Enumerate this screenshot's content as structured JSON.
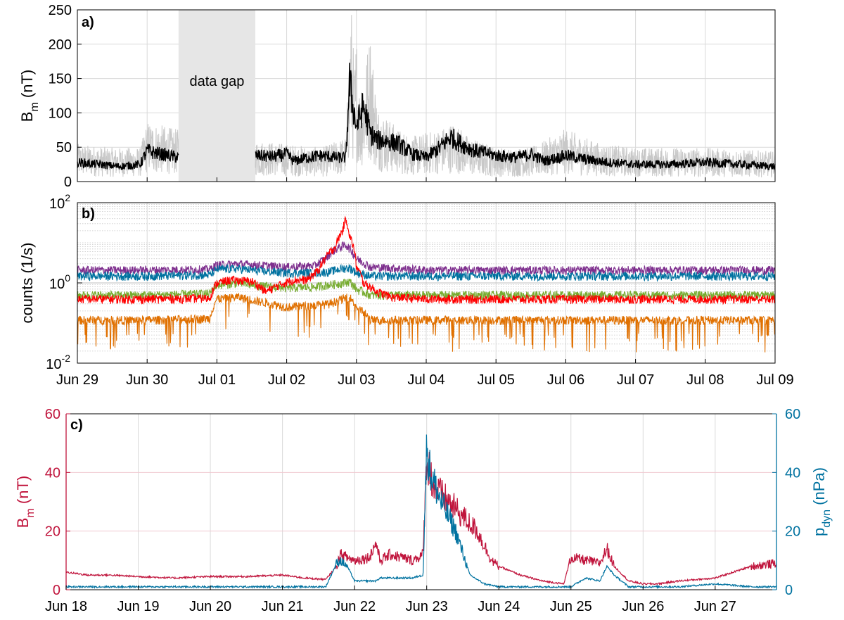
{
  "chart_data": [
    {
      "type": "line",
      "panel_label": "a)",
      "ylabel": "B",
      "ylabel_sub": "m",
      "ylabel_unit": " (nT)",
      "ylim": [
        0,
        250
      ],
      "yticks": [
        0,
        50,
        100,
        150,
        200,
        250
      ],
      "xlim": [
        0,
        10
      ],
      "xticks": [
        0,
        1,
        2,
        3,
        4,
        5,
        6,
        7,
        8,
        9,
        10
      ],
      "grid": true,
      "annotation": "data gap",
      "gap": [
        1.45,
        2.55
      ],
      "colors": {
        "raw": "#c8c8c8",
        "avg": "#000000",
        "gap": "#e6e6e6"
      },
      "series": [
        {
          "role": "raw",
          "x": [
            0,
            0.5,
            0.9,
            1.0,
            1.4,
            2.6,
            3.0,
            3.5,
            3.85,
            3.92,
            3.97,
            4.0,
            4.05,
            4.2,
            4.3,
            4.6,
            4.8,
            5.2,
            5.4,
            5.6,
            6.0,
            6.5,
            7.0,
            7.5,
            8.0,
            9.0,
            10.0
          ],
          "y": [
            50,
            45,
            45,
            80,
            70,
            55,
            50,
            45,
            60,
            250,
            150,
            200,
            120,
            200,
            100,
            70,
            60,
            70,
            80,
            60,
            45,
            45,
            70,
            50,
            45,
            45,
            40
          ]
        },
        {
          "role": "avg",
          "x": [
            0,
            0.3,
            0.6,
            0.9,
            1.0,
            1.1,
            1.3,
            1.45,
            2.55,
            2.8,
            3.0,
            3.1,
            3.3,
            3.5,
            3.7,
            3.85,
            3.9,
            3.95,
            4.0,
            4.05,
            4.1,
            4.2,
            4.3,
            4.4,
            4.6,
            4.8,
            5.0,
            5.2,
            5.35,
            5.5,
            5.7,
            6.0,
            6.3,
            6.5,
            6.7,
            7.0,
            7.3,
            7.6,
            8.0,
            8.5,
            9.0,
            9.5,
            10.0
          ],
          "y": [
            28,
            25,
            22,
            25,
            45,
            42,
            38,
            35,
            38,
            36,
            40,
            30,
            35,
            38,
            35,
            35,
            145,
            110,
            80,
            95,
            110,
            70,
            60,
            60,
            55,
            40,
            35,
            50,
            65,
            55,
            45,
            38,
            35,
            40,
            30,
            38,
            32,
            28,
            25,
            25,
            28,
            25,
            22
          ]
        }
      ]
    },
    {
      "type": "line",
      "panel_label": "b)",
      "ylabel": "counts (1/s)",
      "yscale": "log",
      "ylim": [
        0.01,
        100
      ],
      "yticks_major": [
        0.01,
        1,
        100
      ],
      "ytick_labels": [
        {
          "base": "10",
          "exp": "-2"
        },
        {
          "base": "10",
          "exp": "0"
        },
        {
          "base": "10",
          "exp": "2"
        }
      ],
      "xlim": [
        0,
        10
      ],
      "xtick_labels": [
        "Jun 29",
        "Jun 30",
        "Jul 01",
        "Jul 02",
        "Jul 03",
        "Jul 04",
        "Jul 05",
        "Jul 06",
        "Jul 07",
        "Jul 08",
        "Jul 09"
      ],
      "grid": true,
      "series": [
        {
          "color": "#7e2f8e",
          "x": [
            0,
            1,
            1.9,
            2.0,
            2.3,
            2.6,
            3.0,
            3.4,
            3.55,
            3.7,
            3.85,
            4.0,
            4.2,
            5,
            6,
            7,
            8,
            9,
            10
          ],
          "y": [
            2.1,
            2.1,
            2.2,
            2.8,
            3.0,
            2.8,
            2.5,
            2.7,
            4,
            7,
            9,
            4,
            2.5,
            2.1,
            2.1,
            2.1,
            2.1,
            2.1,
            2.1
          ]
        },
        {
          "color": "#0072a0",
          "x": [
            0,
            1,
            1.9,
            2.0,
            2.3,
            2.6,
            3.0,
            3.4,
            3.6,
            3.8,
            3.9,
            4.0,
            4.2,
            5,
            6,
            7,
            8,
            9,
            10
          ],
          "y": [
            1.5,
            1.5,
            1.6,
            2.2,
            2.3,
            2.0,
            1.8,
            1.8,
            1.9,
            2.3,
            2.4,
            1.8,
            1.5,
            1.5,
            1.5,
            1.5,
            1.5,
            1.5,
            1.5
          ]
        },
        {
          "color": "#77ac30",
          "x": [
            0,
            1,
            1.9,
            2.0,
            2.3,
            2.6,
            3.0,
            3.4,
            3.6,
            3.8,
            3.9,
            4.0,
            4.2,
            5,
            6,
            7,
            8,
            9,
            10
          ],
          "y": [
            0.5,
            0.5,
            0.55,
            0.9,
            1.0,
            0.85,
            0.75,
            0.8,
            0.9,
            1.0,
            1.1,
            0.7,
            0.5,
            0.5,
            0.5,
            0.5,
            0.5,
            0.5,
            0.5
          ]
        },
        {
          "color": "#ff0000",
          "x": [
            0,
            1,
            1.9,
            2.0,
            2.2,
            2.5,
            2.7,
            2.9,
            3.1,
            3.3,
            3.45,
            3.55,
            3.7,
            3.8,
            3.85,
            3.9,
            4.0,
            4.1,
            4.3,
            4.5,
            5,
            6,
            7,
            8,
            9,
            10
          ],
          "y": [
            0.4,
            0.4,
            0.42,
            1.0,
            1.2,
            1.1,
            0.6,
            0.9,
            1.2,
            1.2,
            2.0,
            4,
            8,
            20,
            40,
            15,
            2.5,
            1.0,
            0.6,
            0.45,
            0.4,
            0.4,
            0.4,
            0.4,
            0.4,
            0.4
          ]
        },
        {
          "color": "#e07000",
          "x": [
            0,
            1,
            1.9,
            2.0,
            2.3,
            2.6,
            3.0,
            3.4,
            3.6,
            3.8,
            3.9,
            4.0,
            4.2,
            5,
            6,
            7,
            8,
            9,
            10
          ],
          "y": [
            0.12,
            0.12,
            0.13,
            0.4,
            0.45,
            0.35,
            0.25,
            0.28,
            0.3,
            0.4,
            0.45,
            0.25,
            0.12,
            0.12,
            0.12,
            0.12,
            0.12,
            0.12,
            0.12
          ]
        }
      ]
    },
    {
      "type": "line",
      "panel_label": "c)",
      "ylabel_left": "B",
      "ylabel_left_sub": "m",
      "ylabel_left_unit": " (nT)",
      "ylabel_right": "p",
      "ylabel_right_sub": "dyn",
      "ylabel_right_unit": " (nPa)",
      "ylim_left": [
        0,
        60
      ],
      "ylim_right": [
        0,
        60
      ],
      "yticks": [
        0,
        20,
        40,
        60
      ],
      "xlim": [
        0,
        9.85
      ],
      "xtick_labels": [
        "Jun 18",
        "Jun 19",
        "Jun 20",
        "Jun 21",
        "Jun 22",
        "Jun 23",
        "Jun 24",
        "Jun 25",
        "Jun 26",
        "Jun 27"
      ],
      "grid": true,
      "colors": {
        "left": "#c0143c",
        "right": "#0072a0"
      },
      "series": [
        {
          "name": "",
          "axis": "left",
          "color": "#c0143c",
          "x": [
            0,
            0.3,
            0.6,
            1.0,
            1.5,
            2.0,
            2.5,
            3.0,
            3.3,
            3.6,
            3.75,
            3.8,
            4.0,
            4.2,
            4.3,
            4.35,
            4.5,
            4.8,
            4.95,
            5.0,
            5.1,
            5.3,
            5.5,
            5.7,
            5.9,
            6.0,
            6.3,
            6.6,
            6.9,
            7.0,
            7.2,
            7.4,
            7.5,
            7.6,
            7.8,
            8.0,
            8.2,
            8.5,
            9.0,
            9.5,
            9.85
          ],
          "y": [
            6,
            5,
            5,
            4.5,
            4,
            4.5,
            4.5,
            5,
            4,
            3.5,
            8,
            12,
            10,
            11,
            16,
            10,
            12,
            10,
            12,
            45,
            35,
            30,
            25,
            20,
            10,
            8,
            5,
            3,
            2,
            11,
            10,
            9,
            14,
            8,
            3,
            2,
            2,
            3,
            4,
            8,
            9
          ]
        },
        {
          "name": "",
          "axis": "right",
          "color": "#0072a0",
          "x": [
            0,
            0.5,
            1.0,
            2.0,
            3.0,
            3.6,
            3.75,
            3.8,
            3.9,
            4.0,
            4.3,
            4.35,
            4.8,
            4.95,
            5.0,
            5.05,
            5.2,
            5.4,
            5.6,
            5.8,
            6.0,
            6.5,
            7.0,
            7.2,
            7.4,
            7.5,
            7.6,
            7.8,
            8.0,
            8.5,
            9.0,
            9.5,
            9.85
          ],
          "y": [
            1,
            1,
            1,
            1,
            1,
            1,
            9,
            10,
            8,
            3,
            3,
            4,
            4,
            5,
            49,
            40,
            30,
            20,
            5,
            2,
            1,
            1,
            1,
            4,
            3,
            8,
            5,
            1,
            1,
            1,
            2,
            1,
            1
          ]
        }
      ]
    }
  ]
}
